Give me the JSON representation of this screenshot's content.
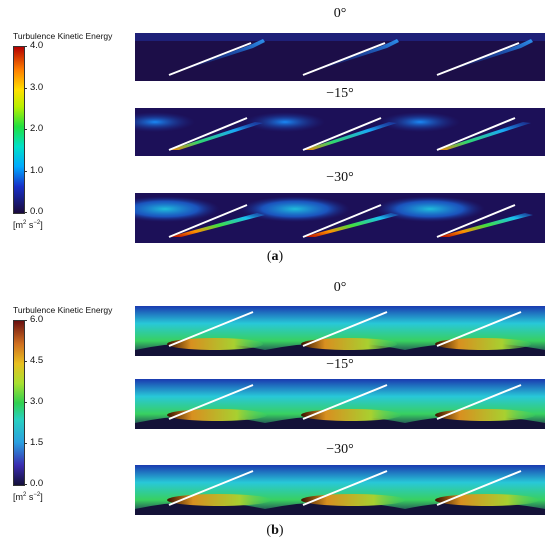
{
  "figure_a": {
    "colorbar_title": "Turbulence Kinetic Energy",
    "ticks": [
      "4.0",
      "3.0",
      "2.0",
      "1.0",
      "0.0"
    ],
    "units_base": "[m",
    "units_exp1": "2",
    "units_mid": " s",
    "units_exp2": "−2",
    "units_end": "]",
    "max_value": 4.0,
    "panels": [
      {
        "angle": "0°",
        "intensity": 0.25
      },
      {
        "angle": "−15°",
        "intensity": 0.55
      },
      {
        "angle": "−30°",
        "intensity": 0.8
      }
    ],
    "label": "a"
  },
  "figure_b": {
    "colorbar_title": "Turbulence Kinetic Energy",
    "ticks": [
      "6.0",
      "4.5",
      "3.0",
      "1.5",
      "0.0"
    ],
    "units_base": "[m",
    "units_exp1": "2",
    "units_mid": " s",
    "units_exp2": "−2",
    "units_end": "]",
    "max_value": 6.0,
    "panels": [
      {
        "angle": "0°"
      },
      {
        "angle": "−15°"
      },
      {
        "angle": "−30°"
      }
    ],
    "label": "b"
  },
  "colors": {
    "background_a": "#1c0e48",
    "background_b": "#1c2a8c",
    "wake_a_low": "#1aa0ff",
    "wake_a_mid": "#30e080",
    "wake_a_high": "#c00000",
    "field_b_cyan": "#30d8d0",
    "field_b_green": "#40d040",
    "wake_b_core": "#e8a020",
    "blade": "#ffffff"
  }
}
